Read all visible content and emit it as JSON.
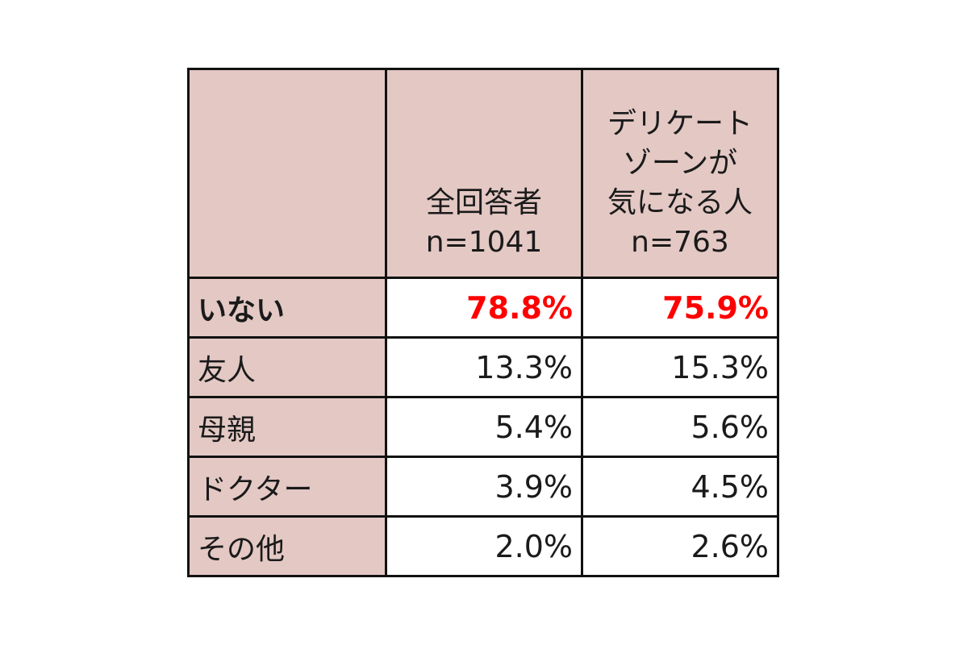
{
  "chart_data": {
    "type": "table",
    "columns": [
      {
        "lines": [
          "全回答者",
          "n=1041"
        ]
      },
      {
        "lines": [
          "デリケート",
          "ゾーンが",
          "気になる人",
          "n=763"
        ]
      }
    ],
    "rows": [
      {
        "label": "いない",
        "values": [
          "78.8%",
          "75.9%"
        ],
        "highlight": true
      },
      {
        "label": "友人",
        "values": [
          "13.3%",
          "15.3%"
        ],
        "highlight": false
      },
      {
        "label": "母親",
        "values": [
          "5.4%",
          "5.6%"
        ],
        "highlight": false
      },
      {
        "label": "ドクター",
        "values": [
          "3.9%",
          "4.5%"
        ],
        "highlight": false
      },
      {
        "label": "その他",
        "values": [
          "2.0%",
          "2.6%"
        ],
        "highlight": false
      }
    ],
    "colors": {
      "header_fill": "#e3c8c4",
      "highlight_text": "#ff0000"
    }
  }
}
